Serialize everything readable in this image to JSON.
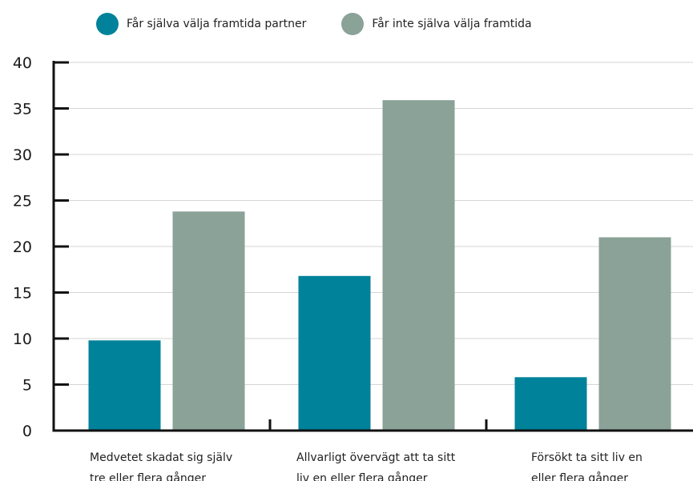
{
  "chart_data": {
    "type": "bar",
    "categories": [
      [
        "Medvetet skadat sig själv",
        "tre eller flera gånger"
      ],
      [
        "Allvarligt övervägt att ta sitt",
        "liv en eller flera gånger"
      ],
      [
        "Försökt ta sitt liv en",
        "eller flera gånger"
      ]
    ],
    "series": [
      {
        "name": "Får själva välja framtida partner",
        "color": "#00829a",
        "values": [
          9.8,
          16.8,
          5.8
        ]
      },
      {
        "name": "Får inte själva välja framtida",
        "color": "#8aa297",
        "values": [
          23.8,
          35.9,
          21.0
        ]
      }
    ],
    "ylim": [
      0,
      40
    ],
    "yticks": [
      "0",
      "5",
      "10",
      "15",
      "20",
      "25",
      "30",
      "35",
      "40"
    ],
    "grid": true,
    "legend_position": "top"
  }
}
